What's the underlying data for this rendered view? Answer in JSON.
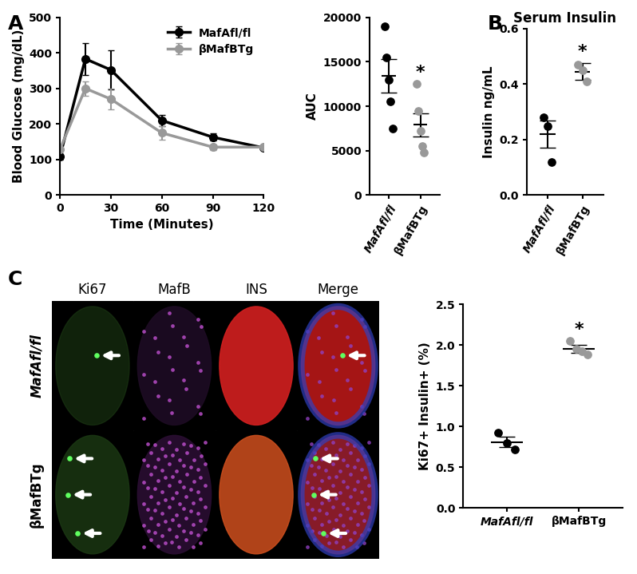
{
  "chart_data": [
    {
      "type": "line",
      "panel": "A",
      "x": [
        0,
        15,
        30,
        60,
        90,
        120
      ],
      "xlim": [
        0,
        120
      ],
      "xticks": [
        0,
        30,
        60,
        90,
        120
      ],
      "ylim": [
        0,
        500
      ],
      "yticks": [
        0,
        100,
        200,
        300,
        400,
        500
      ],
      "x_label": "Time (Minutes)",
      "y_label": "Blood Glucose (mg/dL)",
      "legend": "upper right",
      "marker": "o",
      "series": [
        {
          "name": "MafAfl/fl",
          "color": "#000000",
          "values": [
            108,
            383,
            352,
            210,
            163,
            133
          ],
          "errors": [
            8,
            45,
            55,
            15,
            10,
            5
          ]
        },
        {
          "name": "βMafBTg",
          "color": "#999999",
          "values": [
            128,
            300,
            270,
            175,
            135,
            135
          ],
          "errors": [
            10,
            20,
            30,
            20,
            8,
            5
          ]
        }
      ]
    },
    {
      "type": "dot",
      "categories": [
        "MafAfl/fl",
        "βMafBTg"
      ],
      "colors": [
        "#000000",
        "#999999"
      ],
      "values": [
        [
          19000,
          15500,
          13000,
          10500,
          7500
        ],
        [
          12500,
          9500,
          7200,
          5500,
          4800
        ]
      ],
      "means": [
        13400,
        7900
      ],
      "errors": [
        1900,
        1300
      ],
      "y_label": "AUC",
      "ylim": [
        0,
        20000
      ],
      "yticks": [
        0,
        5000,
        10000,
        15000,
        20000
      ],
      "annotations": [
        {
          "text": "*",
          "category": "βMafBTg"
        }
      ]
    },
    {
      "type": "dot",
      "panel": "B",
      "title": "Serum Insulin",
      "categories": [
        "MafAfl/fl",
        "βMafBTg"
      ],
      "colors": [
        "#000000",
        "#999999"
      ],
      "values": [
        [
          0.28,
          0.25,
          0.12
        ],
        [
          0.47,
          0.45,
          0.41
        ]
      ],
      "means": [
        0.22,
        0.445
      ],
      "errors": [
        0.05,
        0.03
      ],
      "y_label": "Insulin ng/mL",
      "ylim": [
        0,
        0.6
      ],
      "yticks": [
        {
          "value": 0,
          "label": "0.0"
        },
        0.2,
        0.4,
        0.6
      ],
      "annotations": [
        {
          "text": "*",
          "category": "βMafBTg"
        }
      ]
    },
    {
      "type": "image_grid",
      "panel": "C",
      "columns": [
        "Ki67",
        "MafB",
        "INS",
        "Merge"
      ],
      "rows": [
        "MafAfl/fl",
        "βMafBTg"
      ]
    },
    {
      "type": "dot",
      "categories": [
        "MafAfl/fl",
        "βMafBTg"
      ],
      "colors": [
        "#000000",
        "#999999"
      ],
      "values": [
        [
          0.92,
          0.8,
          0.72
        ],
        [
          2.05,
          1.95,
          1.92,
          1.88
        ]
      ],
      "means": [
        0.81,
        1.95
      ],
      "errors": [
        0.06,
        0.05
      ],
      "y_label": "Ki67+ Insulin+ (%)",
      "ylim": [
        0,
        2.5
      ],
      "yticks": [
        {
          "value": 0,
          "label": "0.0"
        },
        0.5,
        {
          "value": 1,
          "label": "1.0"
        },
        1.5,
        {
          "value": 2,
          "label": "2.0"
        },
        2.5
      ],
      "annotations": [
        {
          "text": "*",
          "category": "βMafBTg"
        }
      ]
    }
  ]
}
